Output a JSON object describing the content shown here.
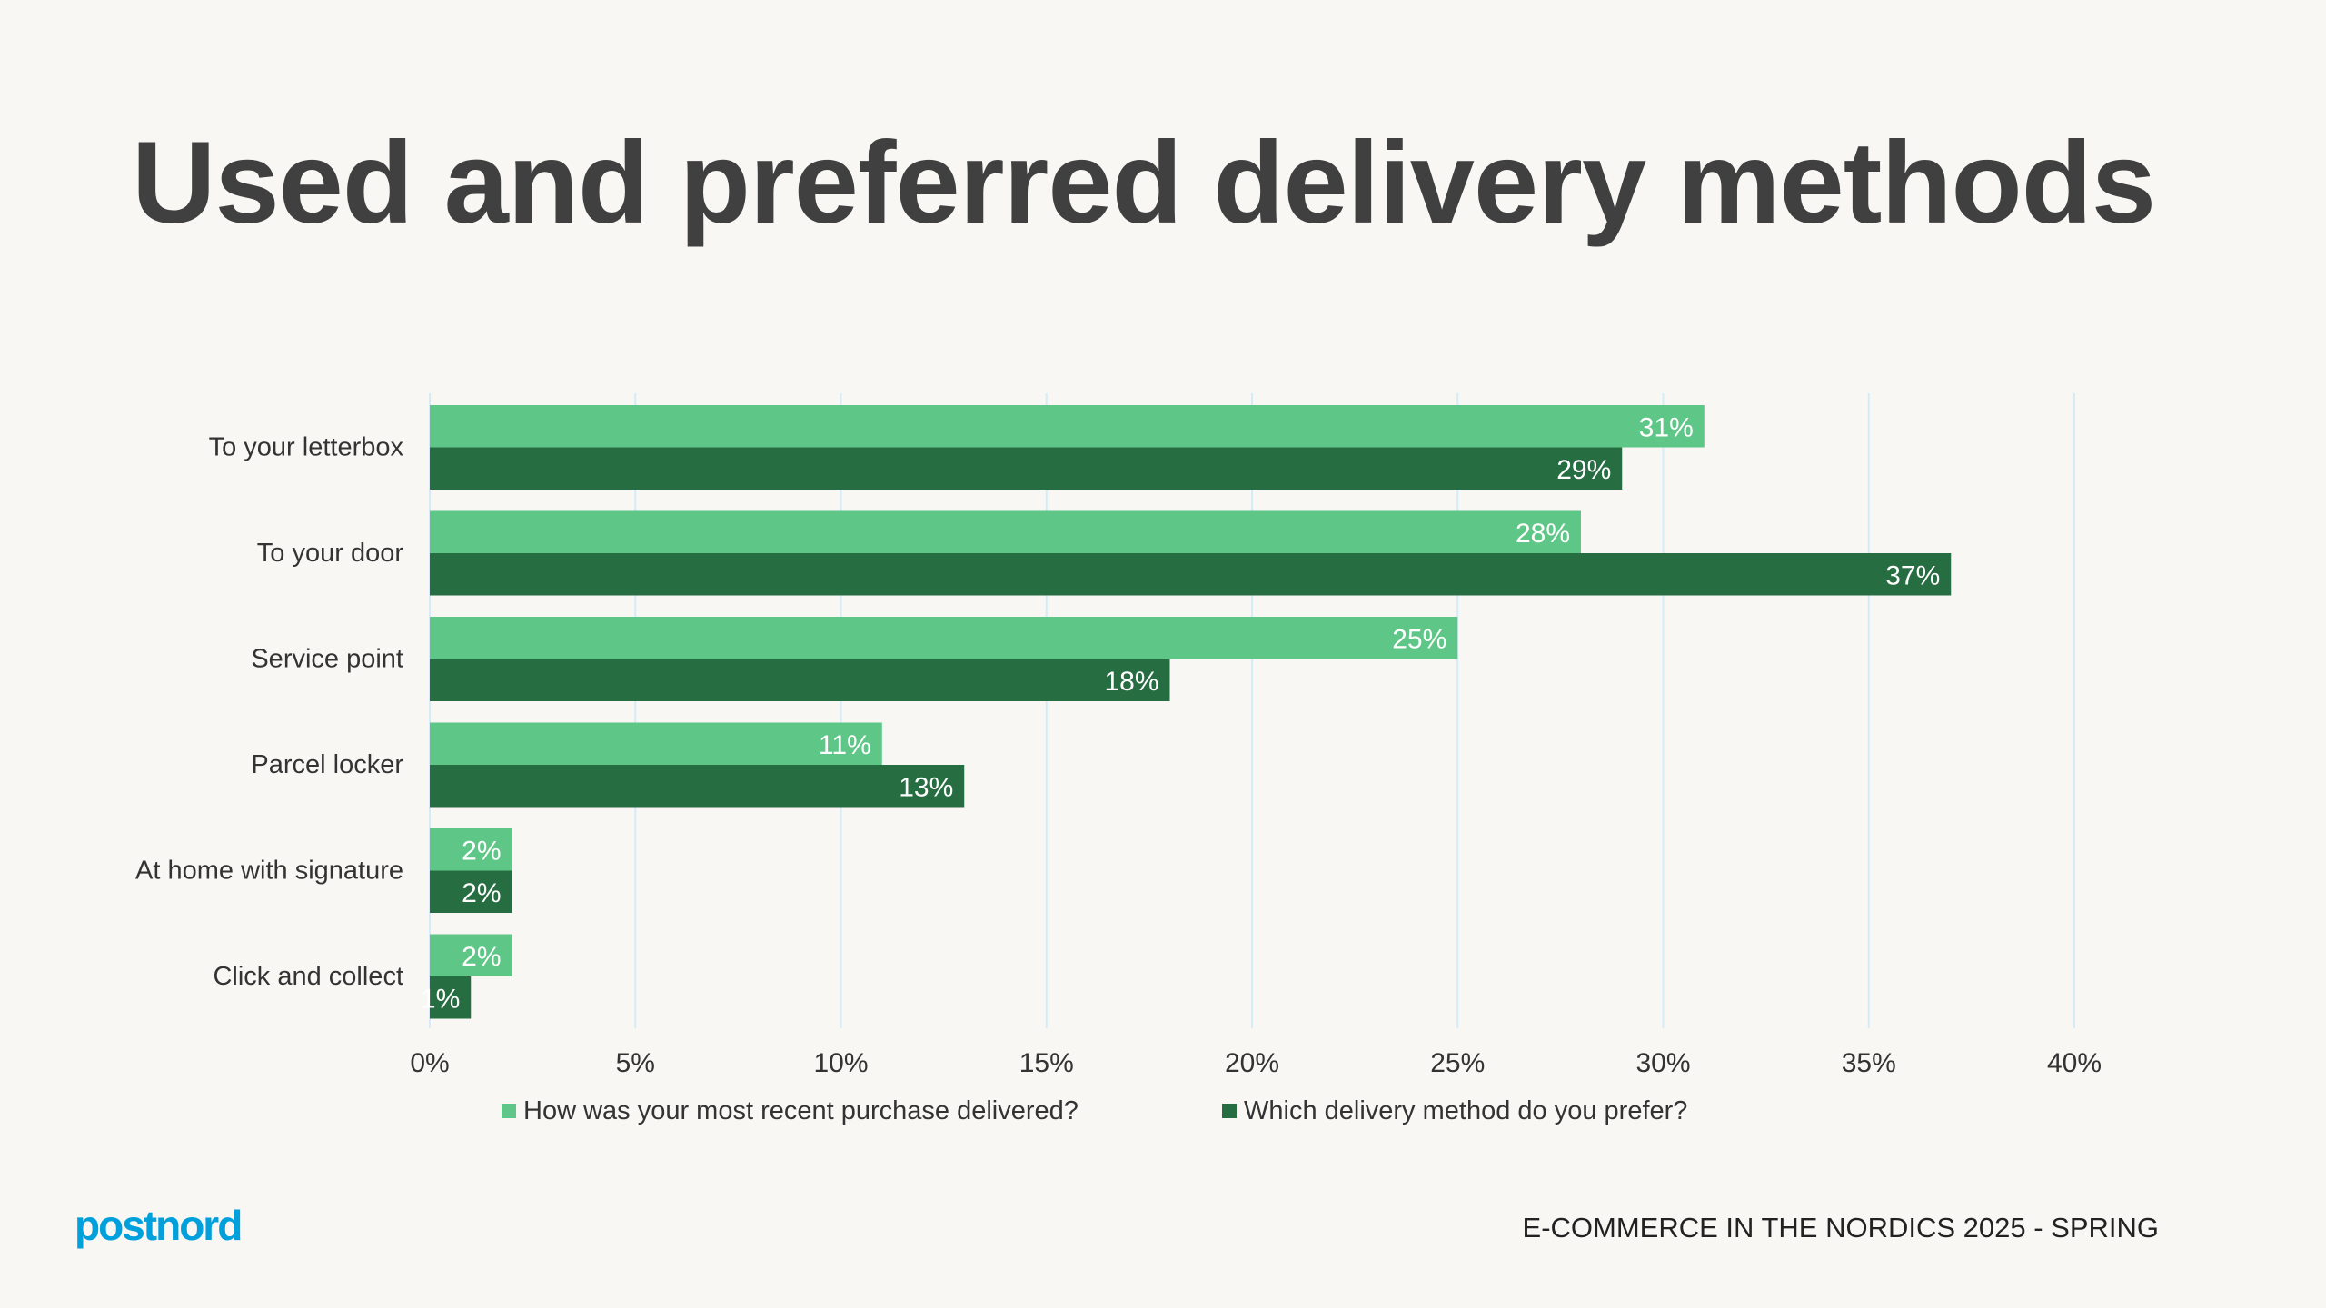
{
  "title": "Used and preferred delivery methods",
  "footer": "E-COMMERCE IN THE NORDICS 2025 - SPRING",
  "logo_text": "postnord",
  "colors": {
    "recent": "#5ec686",
    "prefer": "#266d42",
    "grid": "#d3ecf7",
    "background": "#f8f7f4"
  },
  "chart_data": {
    "type": "bar",
    "orientation": "horizontal",
    "title": "Used and preferred delivery methods",
    "categories": [
      "To your letterbox",
      "To your door",
      "Service point",
      "Parcel locker",
      "At home with signature",
      "Click and collect"
    ],
    "series": [
      {
        "name": "How was your most recent purchase delivered?",
        "values": [
          31,
          28,
          25,
          11,
          2,
          2
        ]
      },
      {
        "name": "Which delivery method do you prefer?",
        "values": [
          29,
          37,
          18,
          13,
          2,
          1
        ]
      }
    ],
    "xlim": [
      0,
      40
    ],
    "xticks": [
      0,
      5,
      10,
      15,
      20,
      25,
      30,
      35,
      40
    ],
    "tick_suffix": "%",
    "grid": "vertical",
    "legend": "bottom"
  }
}
